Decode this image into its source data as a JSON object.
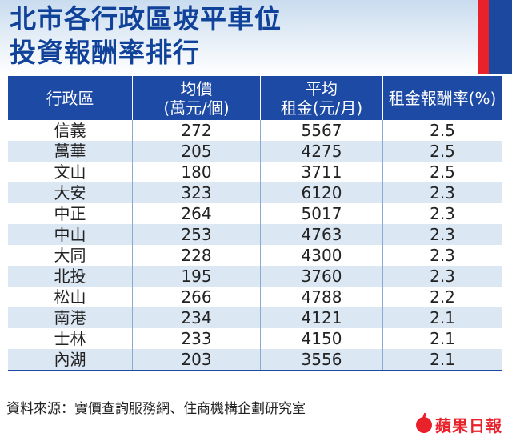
{
  "title": {
    "line1": "北市各行政區坡平車位",
    "line2": "投資報酬率排行"
  },
  "header": {
    "col1": [
      "行政區"
    ],
    "col2": [
      "均價",
      "(萬元/個)"
    ],
    "col3": [
      "平均",
      "租金(元/月)"
    ],
    "col4": [
      "租金報酬率(%)"
    ]
  },
  "chart_data": {
    "type": "table",
    "columns": [
      "行政區",
      "均價(萬元/個)",
      "平均租金(元/月)",
      "租金報酬率(%)"
    ],
    "rows": [
      [
        "信義",
        "272",
        "5567",
        "2.5"
      ],
      [
        "萬華",
        "205",
        "4275",
        "2.5"
      ],
      [
        "文山",
        "180",
        "3711",
        "2.5"
      ],
      [
        "大安",
        "323",
        "6120",
        "2.3"
      ],
      [
        "中正",
        "264",
        "5017",
        "2.3"
      ],
      [
        "中山",
        "253",
        "4763",
        "2.3"
      ],
      [
        "大同",
        "228",
        "4300",
        "2.3"
      ],
      [
        "北投",
        "195",
        "3760",
        "2.3"
      ],
      [
        "松山",
        "266",
        "4788",
        "2.2"
      ],
      [
        "南港",
        "234",
        "4121",
        "2.1"
      ],
      [
        "士林",
        "233",
        "4150",
        "2.1"
      ],
      [
        "內湖",
        "203",
        "3556",
        "2.1"
      ]
    ]
  },
  "source": "資料來源：實價查詢服務網、住商機構企劃研究室",
  "brand": "蘋果日報",
  "colors": {
    "title": "#10429a",
    "header_bg": "#1d4aa5",
    "stripe": "#dce7f4",
    "accent_red": "#e8212b"
  }
}
